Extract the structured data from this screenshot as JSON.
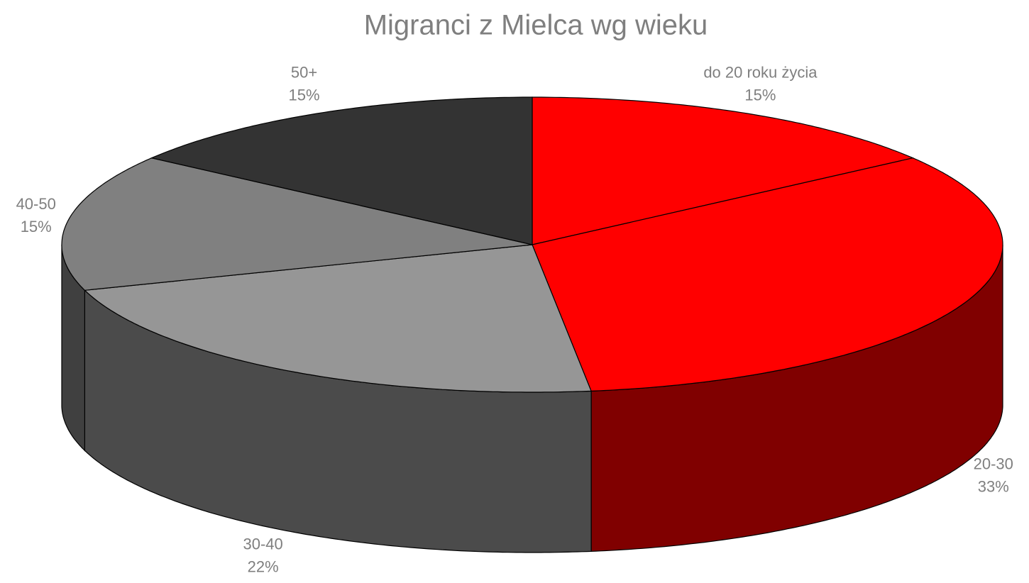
{
  "chart_data": {
    "type": "pie3d",
    "title": "Migranci z Mielca wg wieku",
    "categories": [
      "do 20 roku życia",
      "20-30",
      "30-40",
      "40-50",
      "50+"
    ],
    "values": [
      15,
      33,
      22,
      15,
      15
    ],
    "value_labels": [
      "15%",
      "33%",
      "22%",
      "15%",
      "15%"
    ],
    "colors": [
      "#ff0000",
      "#ff0000",
      "#969696",
      "#808080",
      "#333333"
    ]
  }
}
